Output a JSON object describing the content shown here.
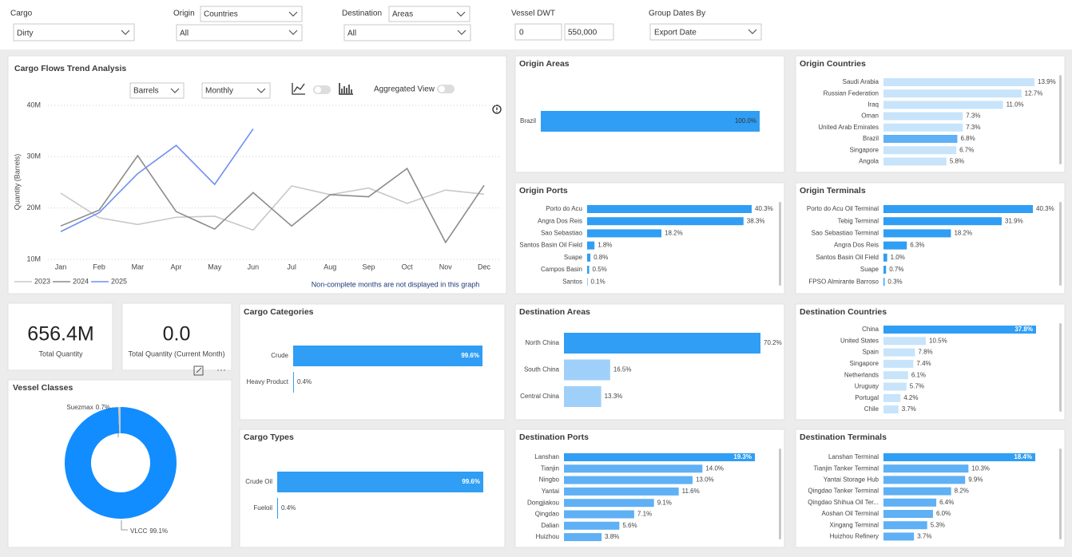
{
  "filters": {
    "cargo": {
      "label": "Cargo",
      "value": "Dirty"
    },
    "origin": {
      "label": "Origin",
      "mode": "Countries",
      "value": "All"
    },
    "destination": {
      "label": "Destination",
      "mode": "Areas",
      "value": "All"
    },
    "vessel_dwt": {
      "label": "Vessel DWT",
      "min": "0",
      "max": "550,000"
    },
    "group_dates": {
      "label": "Group Dates By",
      "value": "Export Date"
    }
  },
  "kpis": [
    {
      "value": "656.4M",
      "label": "Total Quantity"
    },
    {
      "value": "0.0",
      "label": "Total Quantity (Current Month)"
    }
  ],
  "chart_data": [
    {
      "type": "line",
      "title": "Cargo Flows Trend Analysis",
      "y_label": "Quantity (Barrels)",
      "controls": {
        "unit": "Barrels",
        "period": "Monthly",
        "aggregated": "Aggregated View"
      },
      "note": "Non-complete months are not displayed in this graph",
      "categories": [
        "Jan",
        "Feb",
        "Mar",
        "Apr",
        "May",
        "Jun",
        "Jul",
        "Aug",
        "Sep",
        "Oct",
        "Nov",
        "Dec"
      ],
      "series": [
        {
          "name": "2023",
          "color": "#c8c8c8",
          "values": [
            22900000,
            18100000,
            16800000,
            18200000,
            18400000,
            15700000,
            24300000,
            22600000,
            23900000,
            20900000,
            23500000,
            22700000
          ]
        },
        {
          "name": "2024",
          "color": "#8c8c8c",
          "values": [
            16500000,
            19600000,
            30200000,
            19300000,
            15900000,
            23000000,
            16500000,
            22600000,
            22200000,
            27700000,
            13300000,
            24400000
          ]
        },
        {
          "name": "2025",
          "color": "#6f8ff0",
          "values": [
            15400000,
            19100000,
            26700000,
            32200000,
            24600000,
            35400000,
            null,
            null,
            null,
            null,
            null,
            null
          ]
        }
      ],
      "ylim": [
        10000000,
        40000000
      ],
      "yticks": [
        {
          "value": 10000000,
          "label": "10M"
        },
        {
          "value": 20000000,
          "label": "20M"
        },
        {
          "value": 30000000,
          "label": "30M"
        },
        {
          "value": 40000000,
          "label": "40M"
        }
      ],
      "grid": true
    },
    {
      "type": "pie",
      "title": "Vessel Classes",
      "donut": true,
      "categories": [
        "VLCC",
        "Suezmax"
      ],
      "values": [
        99.1,
        0.7
      ],
      "value_labels": [
        "99.1%",
        "0.7%"
      ],
      "colors": [
        "#118dff",
        "#c8c8c8"
      ]
    },
    {
      "type": "bar",
      "title": "Origin Areas",
      "categories": [
        "Brazil"
      ],
      "values": [
        100.0
      ],
      "value_labels": [
        "100.0%"
      ],
      "colors": [
        "#2f9ef4"
      ]
    },
    {
      "type": "bar",
      "title": "Origin Countries",
      "categories": [
        "Saudi Arabia",
        "Russian Federation",
        "Iraq",
        "Oman",
        "United Arab Emirates",
        "Brazil",
        "Singapore",
        "Angola"
      ],
      "values": [
        13.9,
        12.7,
        11.0,
        7.3,
        7.3,
        6.8,
        6.7,
        5.8
      ],
      "value_labels": [
        "13.9%",
        "12.7%",
        "11.0%",
        "7.3%",
        "7.3%",
        "6.8%",
        "6.7%",
        "5.8%"
      ],
      "colors": [
        "#c7e4fb",
        "#c7e4fb",
        "#c7e4fb",
        "#c7e4fb",
        "#c7e4fb",
        "#5fb0f5",
        "#c7e4fb",
        "#c7e4fb"
      ]
    },
    {
      "type": "bar",
      "title": "Origin Ports",
      "categories": [
        "Porto do Acu",
        "Angra Dos Reis",
        "Sao Sebastiao",
        "Santos Basin Oil Field",
        "Suape",
        "Campos Basin",
        "Santos"
      ],
      "values": [
        40.3,
        38.3,
        18.2,
        1.8,
        0.8,
        0.5,
        0.1
      ],
      "value_labels": [
        "40.3%",
        "38.3%",
        "18.2%",
        "1.8%",
        "0.8%",
        "0.5%",
        "0.1%"
      ],
      "colors": [
        "#2f9ef4",
        "#2f9ef4",
        "#2f9ef4",
        "#2f9ef4",
        "#2f9ef4",
        "#2f9ef4",
        "#2f9ef4"
      ]
    },
    {
      "type": "bar",
      "title": "Origin Terminals",
      "categories": [
        "Porto do Acu Oil Terminal",
        "Tebig Terminal",
        "Sao Sebastiao Terminal",
        "Angra Dos Reis",
        "Santos Basin Oil Field",
        "Suape",
        "FPSO Almirante Barroso"
      ],
      "values": [
        40.3,
        31.9,
        18.2,
        6.3,
        1.0,
        0.7,
        0.3
      ],
      "value_labels": [
        "40.3%",
        "31.9%",
        "18.2%",
        "6.3%",
        "1.0%",
        "0.7%",
        "0.3%"
      ],
      "colors": [
        "#2f9ef4",
        "#2f9ef4",
        "#2f9ef4",
        "#2f9ef4",
        "#2f9ef4",
        "#2f9ef4",
        "#2f9ef4"
      ]
    },
    {
      "type": "bar",
      "title": "Cargo Categories",
      "categories": [
        "Crude",
        "Heavy Product"
      ],
      "values": [
        99.6,
        0.4
      ],
      "value_labels": [
        "99.6%",
        "0.4%"
      ],
      "colors": [
        "#2f9ef4",
        "#2f9ef4"
      ]
    },
    {
      "type": "bar",
      "title": "Cargo Types",
      "categories": [
        "Crude Oil",
        "Fueloil"
      ],
      "values": [
        99.6,
        0.4
      ],
      "value_labels": [
        "99.6%",
        "0.4%"
      ],
      "colors": [
        "#2f9ef4",
        "#2f9ef4"
      ]
    },
    {
      "type": "bar",
      "title": "Destination Areas",
      "categories": [
        "North China",
        "South China",
        "Central China"
      ],
      "values": [
        70.2,
        16.5,
        13.3
      ],
      "value_labels": [
        "70.2%",
        "16.5%",
        "13.3%"
      ],
      "colors": [
        "#2f9ef4",
        "#9fd0f9",
        "#9fd0f9"
      ]
    },
    {
      "type": "bar",
      "title": "Destination Countries",
      "categories": [
        "China",
        "United States",
        "Spain",
        "Singapore",
        "Netherlands",
        "Uruguay",
        "Portugal",
        "Chile"
      ],
      "values": [
        37.8,
        10.5,
        7.8,
        7.4,
        6.1,
        5.7,
        4.2,
        3.7
      ],
      "value_labels": [
        "37.8%",
        "10.5%",
        "7.8%",
        "7.4%",
        "6.1%",
        "5.7%",
        "4.2%",
        "3.7%"
      ],
      "colors": [
        "#2f9ef4",
        "#c7e4fb",
        "#c7e4fb",
        "#c7e4fb",
        "#c7e4fb",
        "#c7e4fb",
        "#c7e4fb",
        "#c7e4fb"
      ]
    },
    {
      "type": "bar",
      "title": "Destination Ports",
      "categories": [
        "Lanshan",
        "Tianjin",
        "Ningbo",
        "Yantai",
        "Dongjiakou",
        "Qingdao",
        "Dalian",
        "Huizhou"
      ],
      "values": [
        19.3,
        14.0,
        13.0,
        11.6,
        9.1,
        7.1,
        5.6,
        3.8
      ],
      "value_labels": [
        "19.3%",
        "14.0%",
        "13.0%",
        "11.6%",
        "9.1%",
        "7.1%",
        "5.6%",
        "3.8%"
      ],
      "colors": [
        "#2f9ef4",
        "#5fb0f5",
        "#5fb0f5",
        "#5fb0f5",
        "#5fb0f5",
        "#5fb0f5",
        "#5fb0f5",
        "#5fb0f5"
      ]
    },
    {
      "type": "bar",
      "title": "Destination Terminals",
      "categories": [
        "Lanshan Terminal",
        "Tianjin Tanker Terminal",
        "Yantai Storage Hub",
        "Qingdao Tanker Terminal",
        "Qingdao Shihua Oil Ter...",
        "Aoshan Oil Terminal",
        "Xingang Terminal",
        "Huizhou Refinery"
      ],
      "values": [
        18.4,
        10.3,
        9.9,
        8.2,
        6.4,
        6.0,
        5.3,
        3.7
      ],
      "value_labels": [
        "18.4%",
        "10.3%",
        "9.9%",
        "8.2%",
        "6.4%",
        "6.0%",
        "5.3%",
        "3.7%"
      ],
      "colors": [
        "#2f9ef4",
        "#5fb0f5",
        "#5fb0f5",
        "#5fb0f5",
        "#5fb0f5",
        "#5fb0f5",
        "#5fb0f5",
        "#5fb0f5"
      ]
    }
  ]
}
